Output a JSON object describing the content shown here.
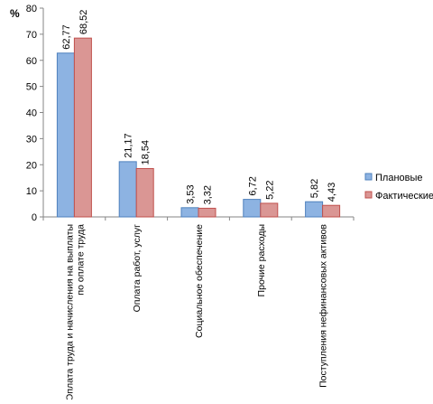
{
  "chart_data": {
    "type": "bar",
    "ylabel": "%",
    "ylim": [
      0,
      80
    ],
    "yticks": [
      0,
      10,
      20,
      30,
      40,
      50,
      60,
      70,
      80
    ],
    "grid": false,
    "legend_position": "right",
    "categories": [
      "Оплата труда и начисления на выплаты по оплате труда",
      "Оплата работ, услуг",
      "Социальное обеспечение",
      "Прочие расходы",
      "Поступления нефинансовых активов"
    ],
    "category_lines": [
      [
        "Оплата труда и начисления на выплаты",
        "по оплате труда"
      ],
      [
        "Оплата работ, услуг"
      ],
      [
        "Социальное обеспечение"
      ],
      [
        "Прочие расходы"
      ],
      [
        "Поступления нефинансовых активов"
      ]
    ],
    "series": [
      {
        "name": "Плановые",
        "color": "#8db3e2",
        "values": [
          62.77,
          21.17,
          3.53,
          6.72,
          5.82
        ],
        "labels": [
          "62,77",
          "21,17",
          "3,53",
          "6,72",
          "5,82"
        ]
      },
      {
        "name": "Фактические",
        "color": "#da9694",
        "values": [
          68.52,
          18.54,
          3.32,
          5.22,
          4.43
        ],
        "labels": [
          "68,52",
          "18,54",
          "3,32",
          "5,22",
          "4,43"
        ]
      }
    ]
  }
}
